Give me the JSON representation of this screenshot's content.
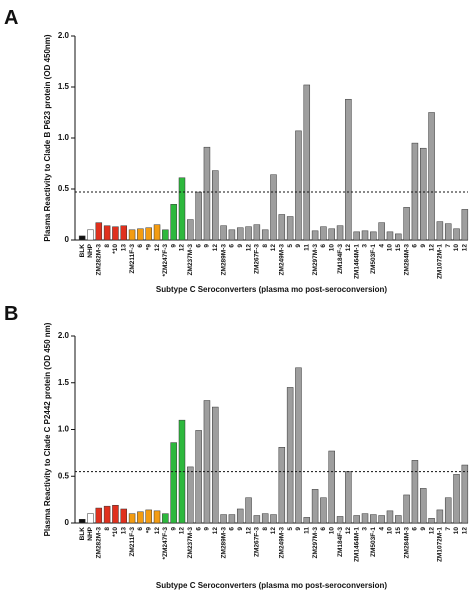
{
  "chart_data": [
    {
      "type": "bar",
      "panel_label": "A",
      "y_label": "Plasma Reactivity to Clade B P623 protein (OD 450nm)",
      "x_label": "Subtype C Seroconverters (plasma mo post-seroconversion)",
      "categories": [
        "BLK",
        "NHP",
        "ZM282M-3",
        "8",
        "*10",
        "13",
        "ZM211F-3",
        "6",
        "*9",
        "12",
        "*ZM247F-3",
        "9",
        "12",
        "ZM237M-3",
        "6",
        "9",
        "12",
        "ZM289M-3",
        "6",
        "9",
        "12",
        "ZM267F-3",
        "8",
        "12",
        "ZM249M-3",
        "5",
        "9",
        "11",
        "ZM297M-3",
        "6",
        "10",
        "ZM184F-3",
        "12",
        "ZM1464M-1",
        "3",
        "ZM503F-1",
        "4",
        "10",
        "15",
        "ZM284M-3",
        "6",
        "9",
        "12",
        "ZM1072M-1",
        "7",
        "10",
        "12"
      ],
      "values": [
        0.04,
        0.1,
        0.17,
        0.14,
        0.13,
        0.14,
        0.1,
        0.11,
        0.12,
        0.15,
        0.1,
        0.35,
        0.61,
        0.2,
        0.47,
        0.91,
        0.68,
        0.14,
        0.1,
        0.12,
        0.13,
        0.15,
        0.1,
        0.64,
        0.25,
        0.23,
        1.07,
        1.52,
        0.09,
        0.13,
        0.11,
        0.14,
        1.38,
        0.08,
        0.09,
        0.08,
        0.17,
        0.08,
        0.06,
        0.32,
        0.95,
        0.9,
        1.25,
        0.18,
        0.16,
        0.11,
        0.3
      ],
      "colors": [
        "#111111",
        "#ffffff",
        "#e0301e",
        "#e0301e",
        "#e0301e",
        "#e0301e",
        "#f39c12",
        "#f39c12",
        "#f39c12",
        "#f39c12",
        "#2db83d",
        "#2db83d",
        "#2db83d",
        "#9e9e9e",
        "#9e9e9e",
        "#9e9e9e",
        "#9e9e9e",
        "#9e9e9e",
        "#9e9e9e",
        "#9e9e9e",
        "#9e9e9e",
        "#9e9e9e",
        "#9e9e9e",
        "#9e9e9e",
        "#9e9e9e",
        "#9e9e9e",
        "#9e9e9e",
        "#9e9e9e",
        "#9e9e9e",
        "#9e9e9e",
        "#9e9e9e",
        "#9e9e9e",
        "#9e9e9e",
        "#9e9e9e",
        "#9e9e9e",
        "#9e9e9e",
        "#9e9e9e",
        "#9e9e9e",
        "#9e9e9e",
        "#9e9e9e",
        "#9e9e9e",
        "#9e9e9e",
        "#9e9e9e",
        "#9e9e9e",
        "#9e9e9e",
        "#9e9e9e",
        "#9e9e9e"
      ],
      "threshold": 0.47,
      "ylim": [
        0,
        2
      ],
      "yticks": [
        0,
        0.5,
        {
          "value": 1,
          "label": "1.0"
        },
        1.5,
        {
          "value": 2,
          "label": "2.0"
        }
      ]
    },
    {
      "type": "bar",
      "panel_label": "B",
      "y_label": "Plasma Reactivity to Clade C P2442 protein (OD 450 nm)",
      "x_label": "Subtype C Seroconverters (plasma mo post-seroconversion)",
      "categories": [
        "BLK",
        "NHP",
        "ZM282M-3",
        "8",
        "*10",
        "13",
        "ZM211F-3",
        "6",
        "*9",
        "12",
        "*ZM247F-3",
        "9",
        "12",
        "ZM237M-3",
        "6",
        "9",
        "12",
        "ZM289M-3",
        "6",
        "9",
        "12",
        "ZM267F-3",
        "8",
        "12",
        "ZM249M-3",
        "5",
        "9",
        "11",
        "ZM297M-3",
        "6",
        "10",
        "ZM184F-3",
        "12",
        "ZM1464M-1",
        "3",
        "ZM503F-1",
        "4",
        "10",
        "15",
        "ZM284M-3",
        "6",
        "9",
        "12",
        "ZM1072M-1",
        "7",
        "10",
        "12"
      ],
      "values": [
        0.04,
        0.1,
        0.16,
        0.18,
        0.19,
        0.15,
        0.1,
        0.12,
        0.14,
        0.13,
        0.1,
        0.86,
        1.1,
        0.6,
        0.99,
        1.31,
        1.24,
        0.09,
        0.09,
        0.15,
        0.27,
        0.08,
        0.1,
        0.09,
        0.81,
        1.45,
        1.66,
        0.06,
        0.36,
        0.27,
        0.77,
        0.07,
        0.55,
        0.08,
        0.1,
        0.09,
        0.08,
        0.13,
        0.08,
        0.3,
        0.67,
        0.37,
        0.05,
        0.14,
        0.27,
        0.52,
        0.62
      ],
      "colors": [
        "#111111",
        "#ffffff",
        "#e0301e",
        "#e0301e",
        "#e0301e",
        "#e0301e",
        "#f39c12",
        "#f39c12",
        "#f39c12",
        "#f39c12",
        "#2db83d",
        "#2db83d",
        "#2db83d",
        "#9e9e9e",
        "#9e9e9e",
        "#9e9e9e",
        "#9e9e9e",
        "#9e9e9e",
        "#9e9e9e",
        "#9e9e9e",
        "#9e9e9e",
        "#9e9e9e",
        "#9e9e9e",
        "#9e9e9e",
        "#9e9e9e",
        "#9e9e9e",
        "#9e9e9e",
        "#9e9e9e",
        "#9e9e9e",
        "#9e9e9e",
        "#9e9e9e",
        "#9e9e9e",
        "#9e9e9e",
        "#9e9e9e",
        "#9e9e9e",
        "#9e9e9e",
        "#9e9e9e",
        "#9e9e9e",
        "#9e9e9e",
        "#9e9e9e",
        "#9e9e9e",
        "#9e9e9e",
        "#9e9e9e",
        "#9e9e9e",
        "#9e9e9e",
        "#9e9e9e",
        "#9e9e9e"
      ],
      "threshold": 0.55,
      "ylim": [
        0,
        2
      ],
      "yticks": [
        0,
        0.5,
        {
          "value": 1,
          "label": "1.0"
        },
        1.5,
        {
          "value": 2,
          "label": "2.0"
        }
      ]
    }
  ]
}
